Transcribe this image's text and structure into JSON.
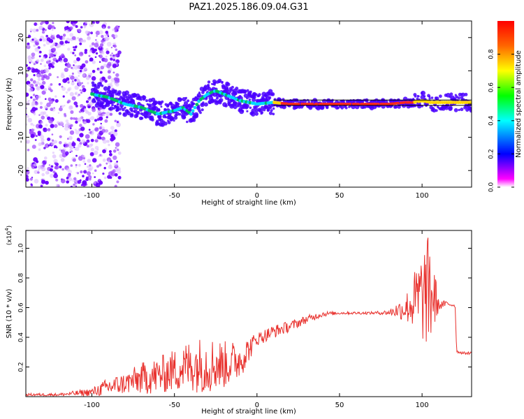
{
  "title": "PAZ1.2025.186.09.04.G31",
  "chart_data": [
    {
      "type": "heatmap",
      "xlabel": "Height of straight line (km)",
      "ylabel": "Frequency (Hz)",
      "xlim": [
        -140,
        130
      ],
      "ylim": [
        -25,
        25
      ],
      "xticks": [
        -100,
        -50,
        0,
        50,
        100
      ],
      "yticks": [
        -20,
        -10,
        0,
        10,
        20
      ],
      "colorbar": {
        "label": "Normalized spectral amplitude",
        "range": [
          0.0,
          1.0
        ],
        "ticks": [
          0.0,
          0.2,
          0.4,
          0.6,
          0.8
        ],
        "colors": [
          "#ffffff",
          "#ff00ff",
          "#0000ff",
          "#00ffff",
          "#00ff00",
          "#ffff00",
          "#ff0000"
        ]
      },
      "centerline": {
        "x": [
          -100,
          -90,
          -80,
          -70,
          -60,
          -50,
          -45,
          -40,
          -35,
          -30,
          -25,
          -20,
          -15,
          -10,
          -5,
          0,
          10,
          20,
          40,
          60,
          80,
          90,
          95,
          100,
          105,
          110,
          120,
          130
        ],
        "y": [
          3,
          2,
          0,
          -1,
          -3,
          -2,
          -1,
          -3,
          1,
          3,
          4,
          3,
          2,
          1,
          0.5,
          0,
          0.5,
          0,
          0,
          0,
          0,
          0.5,
          0.5,
          1,
          0.5,
          0.5,
          0.5,
          0.5
        ]
      },
      "noise_region_x": [
        -140,
        -95
      ]
    },
    {
      "type": "line",
      "xlabel": "Height of straight line (km)",
      "ylabel": "SNR (10 * v/v)",
      "y_multiplier": "(x10^4)",
      "xlim": [
        -140,
        130
      ],
      "ylim": [
        0.0,
        1.12
      ],
      "xticks": [
        -100,
        -50,
        0,
        50,
        100
      ],
      "yticks": [
        0.2,
        0.4,
        0.6,
        0.8,
        1.0
      ],
      "ytick_labels": [
        "0.2",
        "0.4",
        "0.6",
        "0.8",
        "1.0"
      ],
      "color": "#e8302c",
      "envelope": {
        "x": [
          -140,
          -120,
          -100,
          -90,
          -80,
          -70,
          -60,
          -50,
          -40,
          -30,
          -20,
          -10,
          0,
          10,
          20,
          30,
          40,
          50,
          60,
          70,
          80,
          90,
          100,
          105,
          110,
          115,
          120,
          121,
          125,
          130
        ],
        "base": [
          0.01,
          0.01,
          0.02,
          0.04,
          0.06,
          0.08,
          0.09,
          0.12,
          0.14,
          0.14,
          0.15,
          0.2,
          0.37,
          0.42,
          0.46,
          0.51,
          0.55,
          0.56,
          0.56,
          0.56,
          0.56,
          0.56,
          0.55,
          0.55,
          0.6,
          0.62,
          0.61,
          0.3,
          0.29,
          0.29
        ],
        "amp": [
          0.01,
          0.01,
          0.03,
          0.07,
          0.08,
          0.12,
          0.14,
          0.16,
          0.2,
          0.22,
          0.18,
          0.14,
          0.05,
          0.05,
          0.04,
          0.03,
          0.02,
          0.01,
          0.01,
          0.01,
          0.02,
          0.1,
          0.35,
          0.45,
          0.04,
          0.02,
          0.01,
          0.01,
          0.01,
          0.01
        ]
      }
    }
  ]
}
